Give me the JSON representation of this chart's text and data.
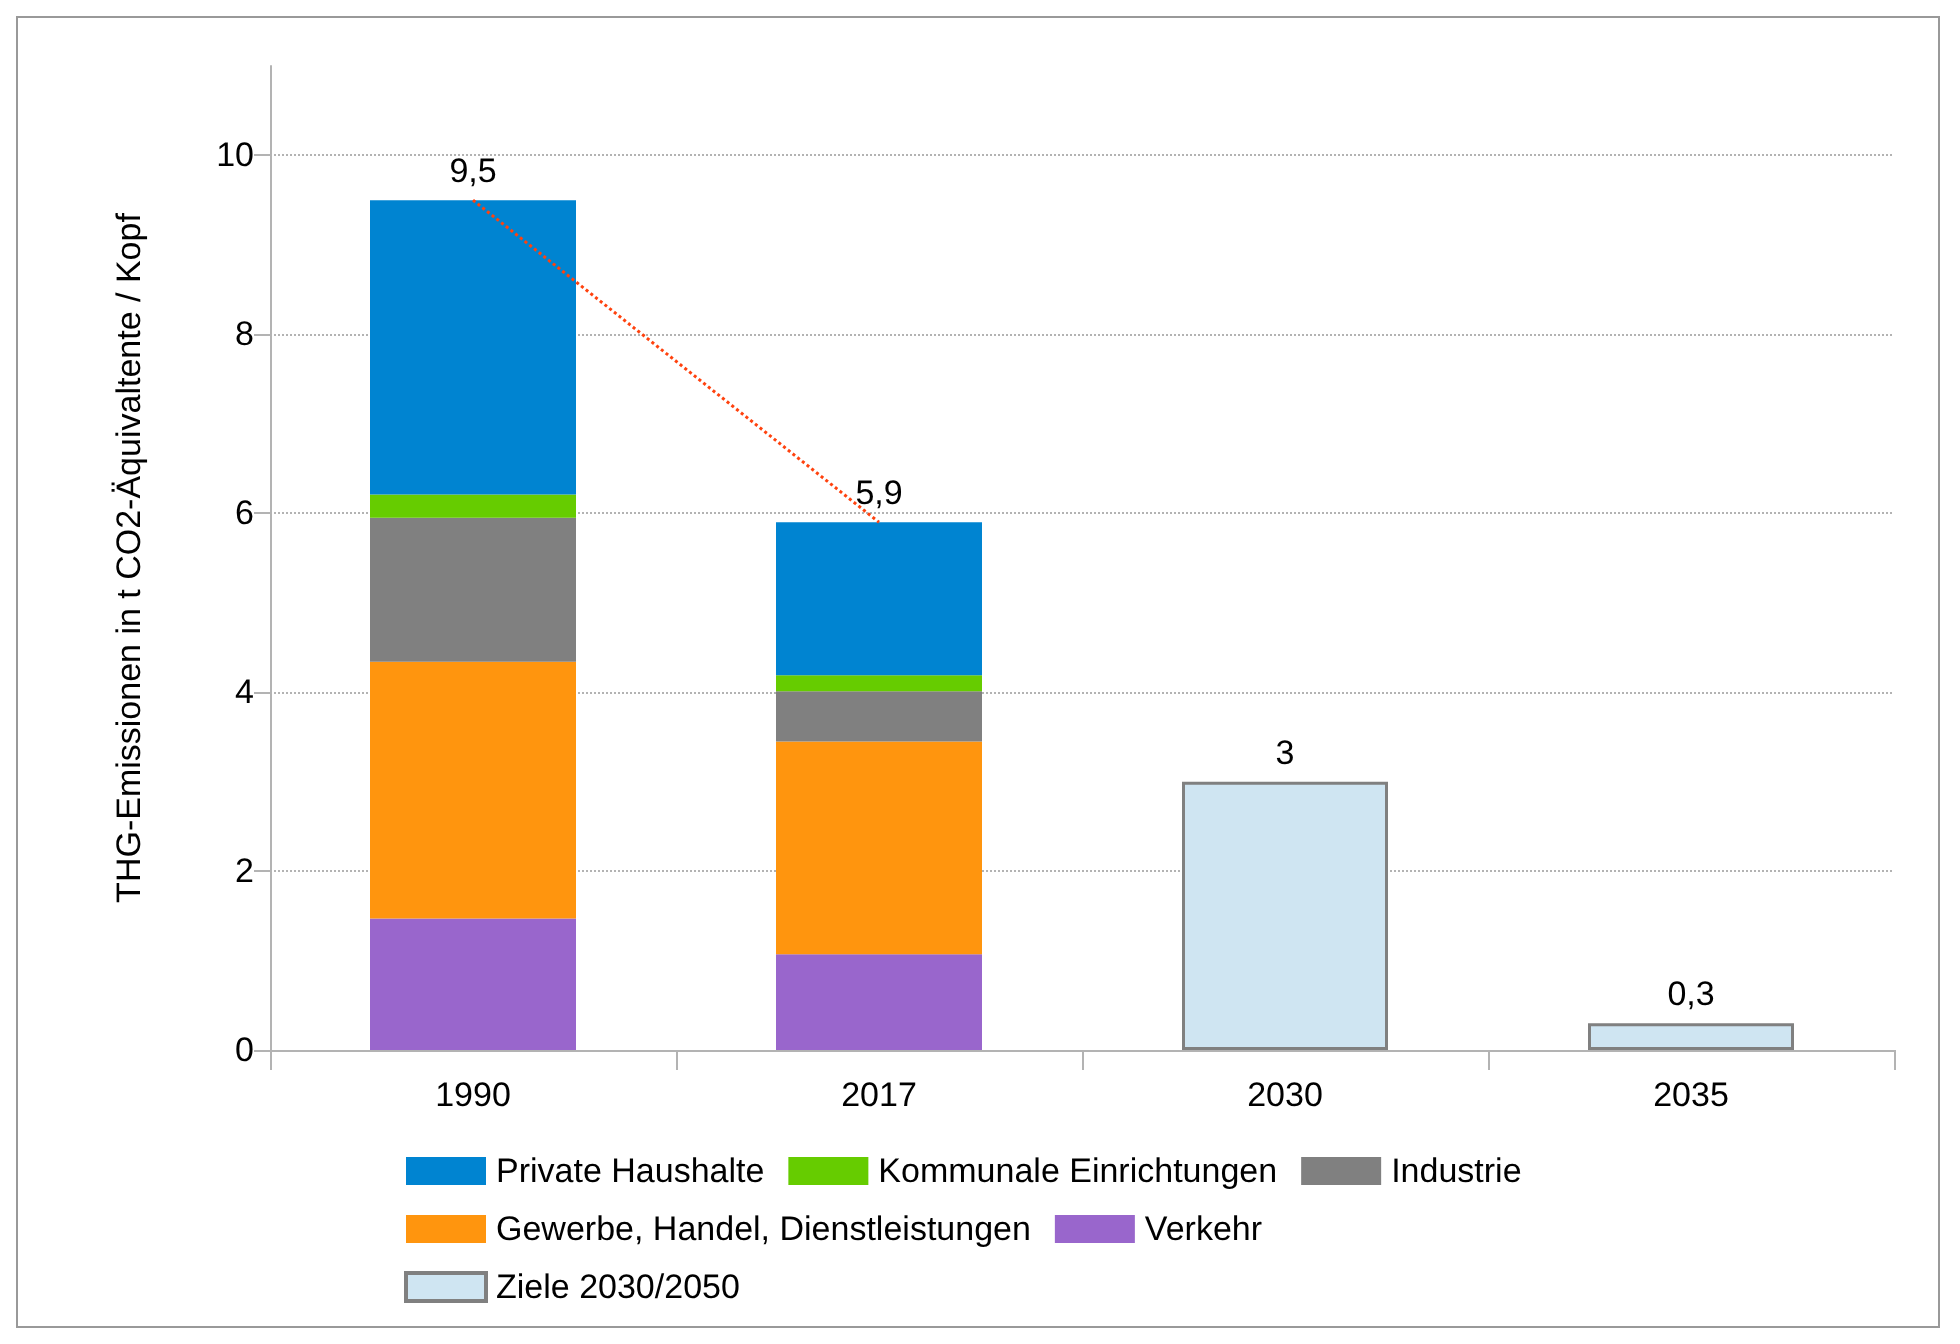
{
  "chart_data": {
    "type": "bar",
    "stacked": true,
    "ylabel": "THG-Emissionen in t CO2-Äquivaltente / Kopf",
    "categories": [
      "1990",
      "2017",
      "2030",
      "2035"
    ],
    "series": [
      {
        "name": "Ziele 2030/2050",
        "color": "#cfe5f2",
        "values": [
          null,
          null,
          3,
          0.3
        ]
      },
      {
        "name": "Verkehr",
        "color": "#9966cc",
        "values": [
          1.47,
          1.07,
          null,
          null
        ]
      },
      {
        "name": "Gewerbe, Handel, Dienstleistungen",
        "color": "#ff950e",
        "values": [
          2.87,
          2.38,
          null,
          null
        ]
      },
      {
        "name": "Industrie",
        "color": "#808080",
        "values": [
          1.61,
          0.56,
          null,
          null
        ]
      },
      {
        "name": "Kommunale Einrichtungen",
        "color": "#66cc00",
        "values": [
          0.26,
          0.18,
          null,
          null
        ]
      },
      {
        "name": "Private Haushalte",
        "color": "#0084d1",
        "values": [
          3.29,
          1.71,
          null,
          null
        ]
      },
      {
        "type": "line",
        "color": "#ff420e",
        "line_style": "dotted",
        "marker": "none",
        "values": [
          9.5,
          5.9,
          null,
          null
        ]
      }
    ],
    "totals": [
      "9,5",
      "5,9",
      "3",
      "0,3"
    ],
    "ylim": [
      0,
      11
    ],
    "yticks": [
      0,
      2,
      4,
      6,
      8,
      10
    ],
    "grid": "y",
    "legend": "bottom"
  }
}
